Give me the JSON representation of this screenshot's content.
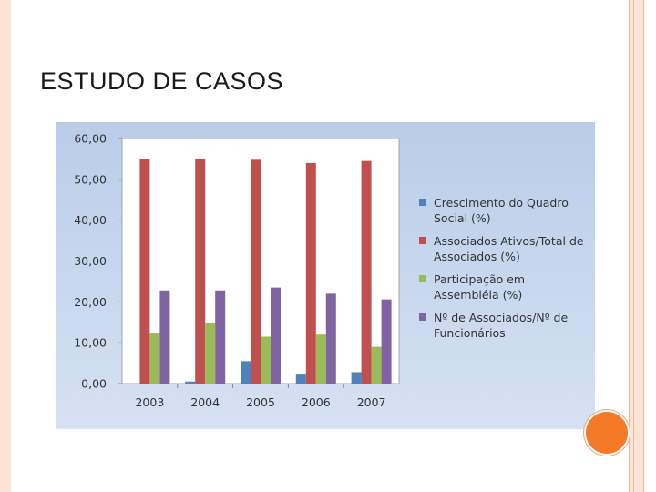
{
  "slide": {
    "title": "ESTUDO DE CASOS"
  },
  "colors": {
    "accent": "#f47a28",
    "border": "#fbe3d6",
    "chart_bg": "#c5d6ee"
  },
  "chart_data": {
    "type": "bar",
    "categories": [
      "2003",
      "2004",
      "2005",
      "2006",
      "2007"
    ],
    "ylim": [
      0,
      60
    ],
    "yticks": [
      "0,00",
      "10,00",
      "20,00",
      "30,00",
      "40,00",
      "50,00",
      "60,00"
    ],
    "grid": false,
    "legend_position": "right",
    "series": [
      {
        "name": "Crescimento do Quadro Social (%)",
        "color": "#4f81bd",
        "values": [
          0.0,
          0.5,
          5.5,
          2.2,
          2.8
        ]
      },
      {
        "name": "Associados Ativos/Total de Associados (%)",
        "color": "#c0504d",
        "values": [
          55.0,
          55.0,
          54.8,
          54.0,
          54.5
        ]
      },
      {
        "name": "Participação em Assembléia (%)",
        "color": "#9bbb59",
        "values": [
          12.3,
          14.8,
          11.5,
          12.0,
          9.0
        ]
      },
      {
        "name": "Nº de Associados/Nº de Funcionários",
        "color": "#8064a2",
        "values": [
          22.8,
          22.8,
          23.5,
          22.0,
          20.6
        ]
      }
    ]
  }
}
